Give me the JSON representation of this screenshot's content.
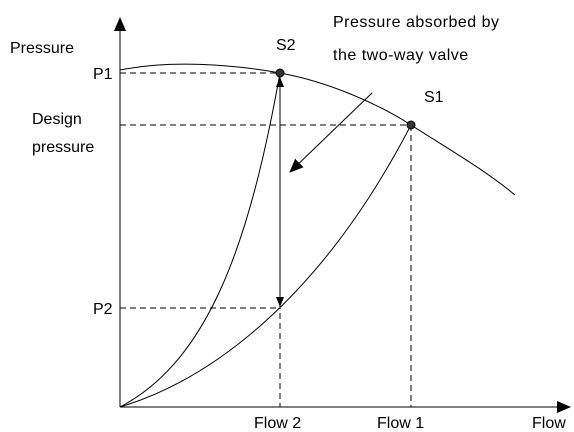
{
  "axis_labels": {
    "y": "Pressure",
    "x": "Flow"
  },
  "points": {
    "s1": "S1",
    "s2": "S2"
  },
  "pressure_levels": {
    "p1": "P1",
    "design": [
      "Design",
      "pressure"
    ],
    "p2": "P2"
  },
  "flow_levels": {
    "flow1": "Flow 1",
    "flow2": "Flow 2"
  },
  "annotation": [
    "Pressure absorbed by",
    "the two-way valve"
  ]
}
